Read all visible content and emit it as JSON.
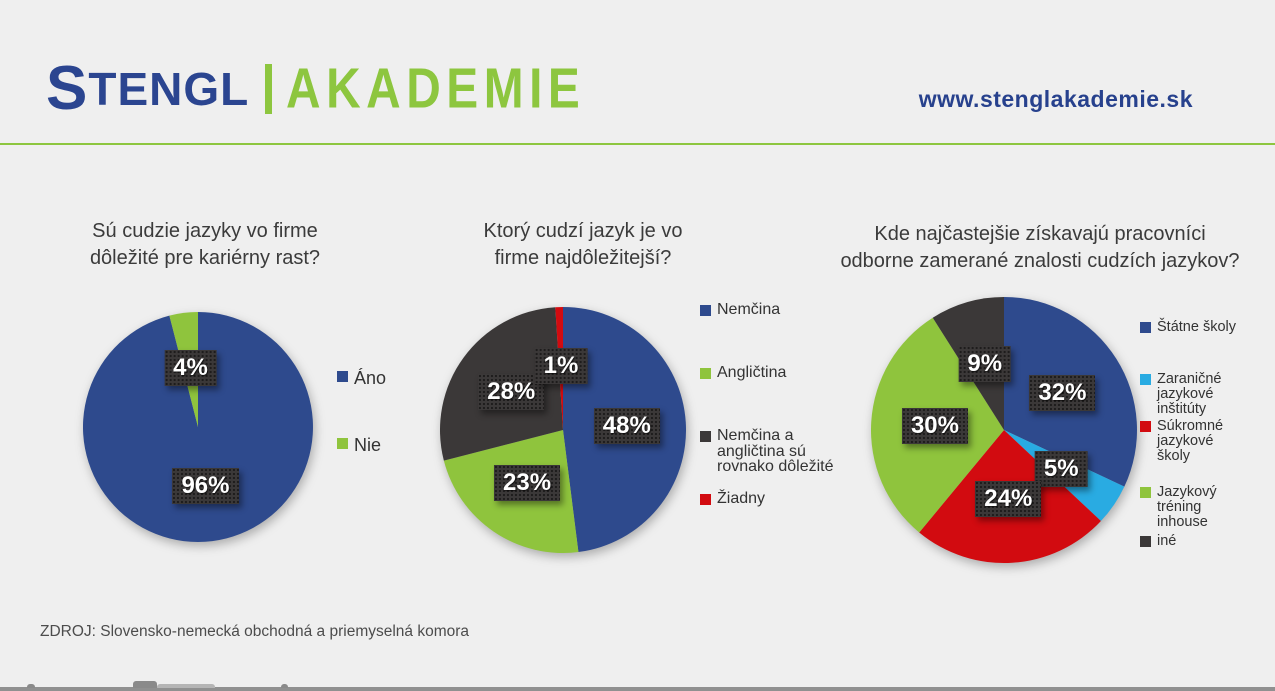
{
  "header": {
    "logo": {
      "word_start": "S",
      "word_rest": "TENGL",
      "word_suffix": "AKADEMIE",
      "brand_color": "#2b4590",
      "accent_color": "#8dc63f"
    },
    "website": "www.stenglakademie.sk"
  },
  "charts": [
    {
      "title_lines": [
        "Sú cudzie jazyky vo firme",
        "dôležité pre kariérny rast?"
      ],
      "chart_data": {
        "type": "pie",
        "labels": [
          "Áno",
          "Nie"
        ],
        "values": [
          96,
          4
        ],
        "data_labels": [
          "96%",
          "4%"
        ],
        "colors": [
          "#2e4a8d",
          "#8fc43d"
        ],
        "start_angle_deg": 0,
        "direction": "clockwise",
        "legend_position": "right",
        "label_radius": 0.52
      }
    },
    {
      "title_lines": [
        "Ktorý cudzí jazyk je vo",
        "firme najdôležitejší?"
      ],
      "chart_data": {
        "type": "pie",
        "labels": [
          "Nemčina",
          "Angličtina",
          "Nemčina a angličtina sú rovnako dôležité",
          "Žiadny"
        ],
        "values": [
          48,
          23,
          28,
          1
        ],
        "data_labels": [
          "48%",
          "23%",
          "28%",
          "1%"
        ],
        "colors": [
          "#2e4a8d",
          "#8fc43d",
          "#3b3838",
          "#d20b10"
        ],
        "start_angle_deg": 0,
        "direction": "clockwise",
        "legend_position": "right",
        "label_radius": 0.52
      }
    },
    {
      "title_lines": [
        "Kde najčastejšie získavajú pracovníci",
        "odborne zamerané znalosti cudzích jazykov?"
      ],
      "chart_data": {
        "type": "pie",
        "labels": [
          "Štátne školy",
          "Zaraničné jazykové inštitúty",
          "Súkromné jazykové školy",
          "Jazykový tréning inhouse",
          "iné"
        ],
        "values": [
          32,
          5,
          24,
          30,
          9
        ],
        "data_labels": [
          "32%",
          "5%",
          "24%",
          "30%",
          "9%"
        ],
        "colors": [
          "#2e4a8d",
          "#29abe2",
          "#d20b10",
          "#8fc43d",
          "#3b3838"
        ],
        "start_angle_deg": 0,
        "direction": "clockwise",
        "legend_position": "right",
        "label_radius": 0.52
      }
    }
  ],
  "footer": {
    "source": "ZDROJ: Slovensko-nemecká obchodná a priemyselná komora"
  }
}
